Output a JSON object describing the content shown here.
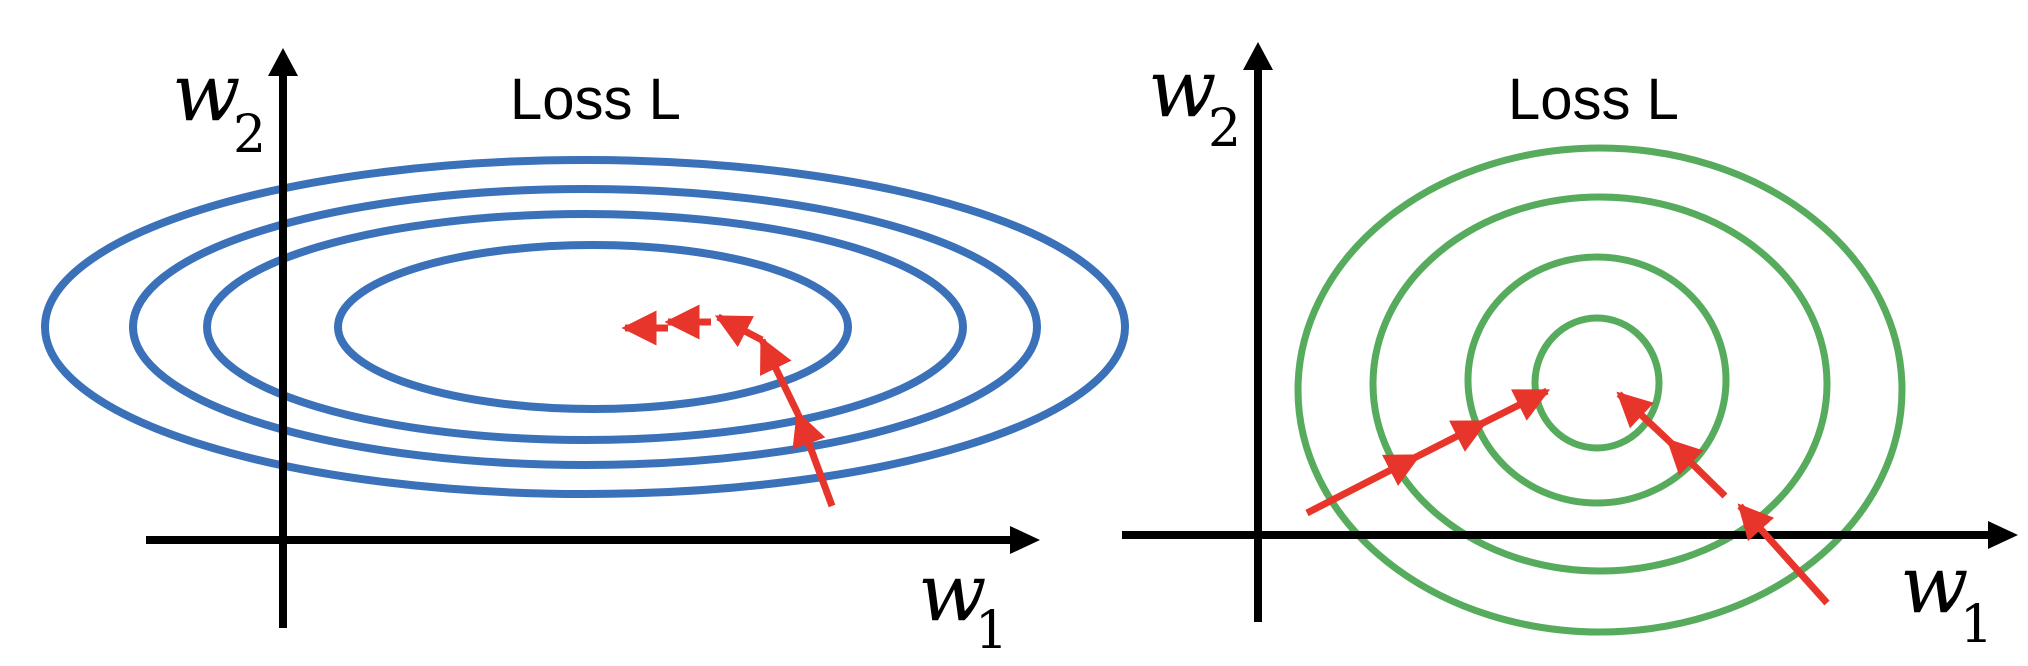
{
  "left_panel": {
    "title": "Loss L",
    "x_axis_symbol": "w",
    "x_axis_subscript": "1",
    "y_axis_symbol": "w",
    "y_axis_subscript": "2",
    "contour_color": "#3a71b9",
    "contour_count": 4,
    "contour_shape": "elongated ellipses",
    "step_color": "#e8352b",
    "step_count": 5
  },
  "right_panel": {
    "title": "Loss L",
    "x_axis_symbol": "w",
    "x_axis_subscript": "1",
    "y_axis_symbol": "w",
    "y_axis_subscript": "2",
    "contour_color": "#56ab5c",
    "contour_count": 4,
    "contour_shape": "near-circular",
    "step_color": "#e8352b",
    "step_count": 6
  }
}
